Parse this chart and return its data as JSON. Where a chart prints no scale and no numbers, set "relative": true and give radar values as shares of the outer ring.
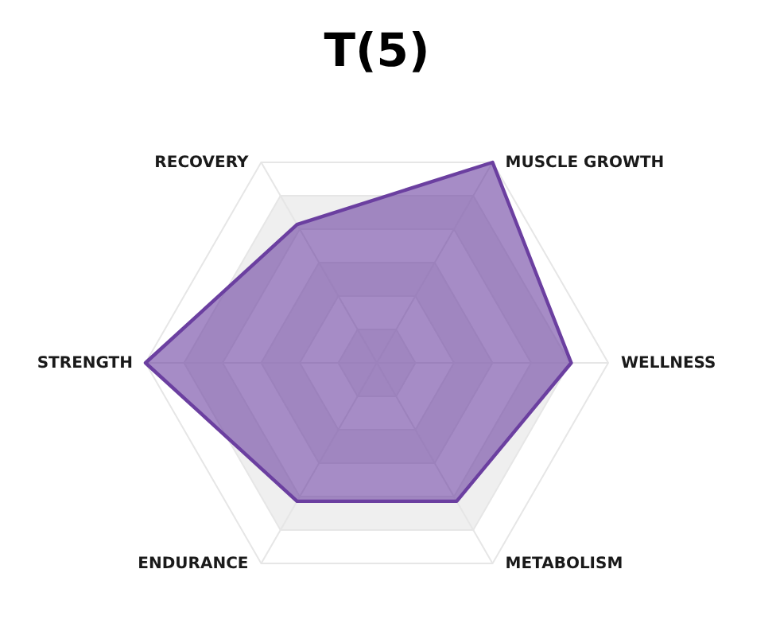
{
  "chart_data": {
    "type": "radar",
    "title": "T(5)",
    "categories": [
      "MUSCLE GROWTH",
      "WELLNESS",
      "METABOLISM",
      "ENDURANCE",
      "STRENGTH",
      "RECOVERY"
    ],
    "relative": true,
    "series": [
      {
        "color": "#6b3fa0",
        "values": [
          1,
          0.84,
          0.69,
          0.69,
          1,
          0.69
        ]
      }
    ],
    "grid": true
  }
}
